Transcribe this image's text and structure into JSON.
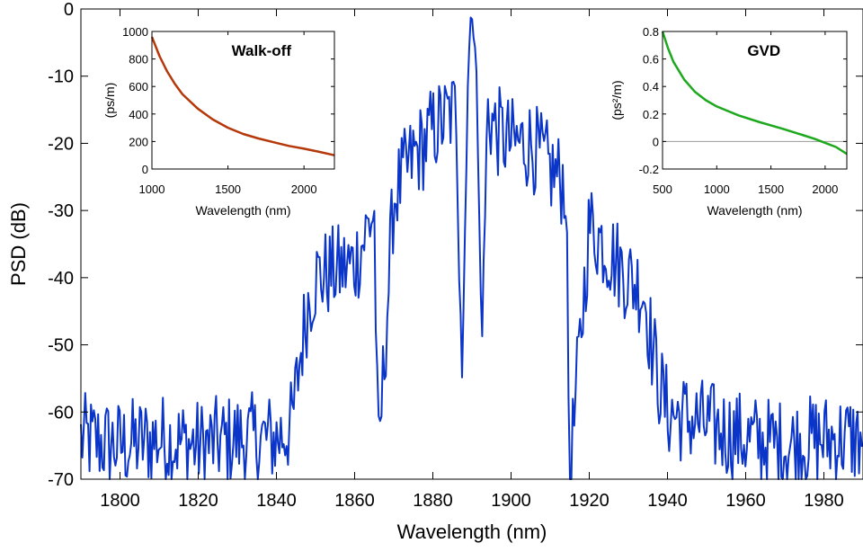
{
  "chart_data": [
    {
      "type": "line",
      "xlabel": "Wavelength (nm)",
      "ylabel": "PSD (dB)",
      "xlim": [
        1790,
        1990
      ],
      "ylim": [
        -70,
        0
      ],
      "xticks": [
        1800,
        1820,
        1840,
        1860,
        1880,
        1900,
        1920,
        1940,
        1960,
        1980
      ],
      "yticks": [
        0,
        -10,
        -20,
        -30,
        -40,
        -50,
        -60,
        -70
      ],
      "grid": false,
      "line_color": "#0a35c8",
      "series": [
        {
          "x": [
            1790,
            1800,
            1810,
            1820,
            1830,
            1840,
            1844,
            1846,
            1848,
            1850,
            1855,
            1860,
            1865,
            1866,
            1870,
            1875,
            1878,
            1880,
            1884,
            1886,
            1887.5,
            1889,
            1890,
            1891,
            1892.5,
            1894,
            1896,
            1900,
            1905,
            1910,
            1914,
            1915,
            1920,
            1925,
            1930,
            1934,
            1936,
            1938,
            1940,
            1950,
            1960,
            1970,
            1980,
            1990
          ],
          "y": [
            -64,
            -65,
            -64,
            -65,
            -64,
            -64,
            -62,
            -52,
            -44,
            -40,
            -39,
            -38,
            -30,
            -68,
            -28,
            -22,
            -20,
            -18,
            -16,
            -15,
            -55,
            -9,
            0,
            -6,
            -50,
            -15,
            -18,
            -20,
            -20,
            -24,
            -26,
            -70,
            -32,
            -36,
            -40,
            -42,
            -50,
            -56,
            -60,
            -62,
            -64,
            -65,
            -64,
            -64
          ]
        }
      ]
    },
    {
      "type": "line",
      "title": "Walk-off",
      "xlabel": "Wavelength (nm)",
      "ylabel": "(ps/m)",
      "xlim": [
        1000,
        2200
      ],
      "ylim": [
        0,
        1000
      ],
      "xticks": [
        1000,
        1500,
        2000
      ],
      "xtick_labels": [
        "1000",
        "1500",
        "2000"
      ],
      "yticks": [
        0,
        200,
        400,
        600,
        800,
        1000
      ],
      "ytick_labels": [
        "0",
        "200",
        "400",
        "600",
        "800",
        "1000"
      ],
      "line_color": "#b5380b",
      "series": [
        {
          "x": [
            1000,
            1050,
            1100,
            1150,
            1200,
            1300,
            1400,
            1500,
            1600,
            1700,
            1800,
            1900,
            2000,
            2100,
            2200
          ],
          "y": [
            960,
            820,
            710,
            620,
            545,
            440,
            360,
            300,
            255,
            222,
            195,
            168,
            148,
            125,
            100
          ]
        }
      ]
    },
    {
      "type": "line",
      "title": "GVD",
      "xlabel": "Wavelength (nm)",
      "ylabel": "(ps²/m)",
      "xlim": [
        500,
        2200
      ],
      "ylim": [
        -0.2,
        0.8
      ],
      "xticks": [
        500,
        1000,
        1500,
        2000
      ],
      "xtick_labels": [
        "500",
        "1000",
        "1500",
        "2000"
      ],
      "yticks": [
        0.8,
        0.6,
        0.4,
        0.2,
        0,
        -0.2
      ],
      "ytick_labels": [
        "0.8",
        "0.6",
        "0.4",
        "0.2",
        "0",
        "-0.2"
      ],
      "zero_line": true,
      "line_color": "#1da81d",
      "series": [
        {
          "x": [
            500,
            550,
            600,
            700,
            800,
            900,
            1000,
            1200,
            1400,
            1600,
            1800,
            1900,
            2000,
            2100,
            2200
          ],
          "y": [
            0.8,
            0.68,
            0.58,
            0.45,
            0.36,
            0.3,
            0.255,
            0.19,
            0.14,
            0.095,
            0.045,
            0.02,
            -0.01,
            -0.04,
            -0.09
          ]
        }
      ]
    }
  ]
}
